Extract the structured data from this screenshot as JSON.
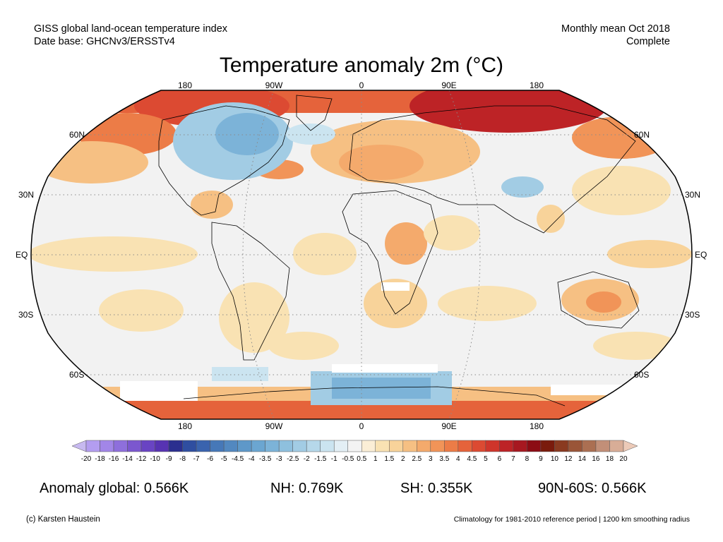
{
  "header": {
    "left_line1": "GISS global land-ocean temperature index",
    "left_line2": "Date base: GHCNv3/ERSSTv4",
    "right_line1": "Monthly mean Oct 2018",
    "right_line2": "Complete",
    "title": "Temperature anomaly 2m (°C)"
  },
  "map": {
    "projection": "Robinson",
    "lon_labels_top": [
      "180",
      "90W",
      "0",
      "90E",
      "180"
    ],
    "lon_labels_bottom": [
      "180",
      "90W",
      "0",
      "90E",
      "180"
    ],
    "lat_labels_left": [
      "60N",
      "30N",
      "EQ",
      "30S",
      "60S"
    ],
    "lat_labels_right": [
      "60N",
      "30N",
      "EQ",
      "30S",
      "60S"
    ],
    "colors": {
      "ocean_neutral": "#f2f2f2",
      "outline": "#000000",
      "gridline": "#8a8a8a"
    }
  },
  "colorbar": {
    "tick_labels": [
      "-20",
      "-18",
      "-16",
      "-14",
      "-12",
      "-10",
      "-9",
      "-8",
      "-7",
      "-6",
      "-5",
      "-4.5",
      "-4",
      "-3.5",
      "-3",
      "-2.5",
      "-2",
      "-1.5",
      "-1",
      "-0.5",
      "0.5",
      "1",
      "1.5",
      "2",
      "2.5",
      "3",
      "3.5",
      "4",
      "4.5",
      "5",
      "6",
      "7",
      "8",
      "9",
      "10",
      "12",
      "14",
      "16",
      "18",
      "20"
    ],
    "colors": [
      "#c7b9f0",
      "#b39df0",
      "#a286e8",
      "#8e6fdc",
      "#7b57cf",
      "#6944c3",
      "#5733b2",
      "#2b2f8f",
      "#2f4ea0",
      "#3a63ae",
      "#4678b8",
      "#5288c0",
      "#5e98c9",
      "#6ba6d1",
      "#7cb3d8",
      "#8ec0de",
      "#a2cce4",
      "#b6d8ea",
      "#cbe4f0",
      "#e3eff5",
      "#f3f3f3",
      "#fbeed6",
      "#f9e2b3",
      "#f8d39a",
      "#f6c083",
      "#f4aa6c",
      "#f19458",
      "#ec7c47",
      "#e5633b",
      "#dc4a32",
      "#cf352b",
      "#bd2326",
      "#a71820",
      "#8c0c14",
      "#7a1b0c",
      "#8a3a20",
      "#9a5538",
      "#ab6f52",
      "#c28f78",
      "#d8ad97",
      "#eccab8"
    ]
  },
  "stats": {
    "global": "Anomaly global: 0.566K",
    "nh": "NH: 0.769K",
    "sh": "SH: 0.355K",
    "polar": "90N-60S: 0.566K"
  },
  "footer": {
    "credit": "(c) Karsten Haustein",
    "note": "Climatology for 1981-2010 reference period | 1200 km smoothing radius"
  }
}
